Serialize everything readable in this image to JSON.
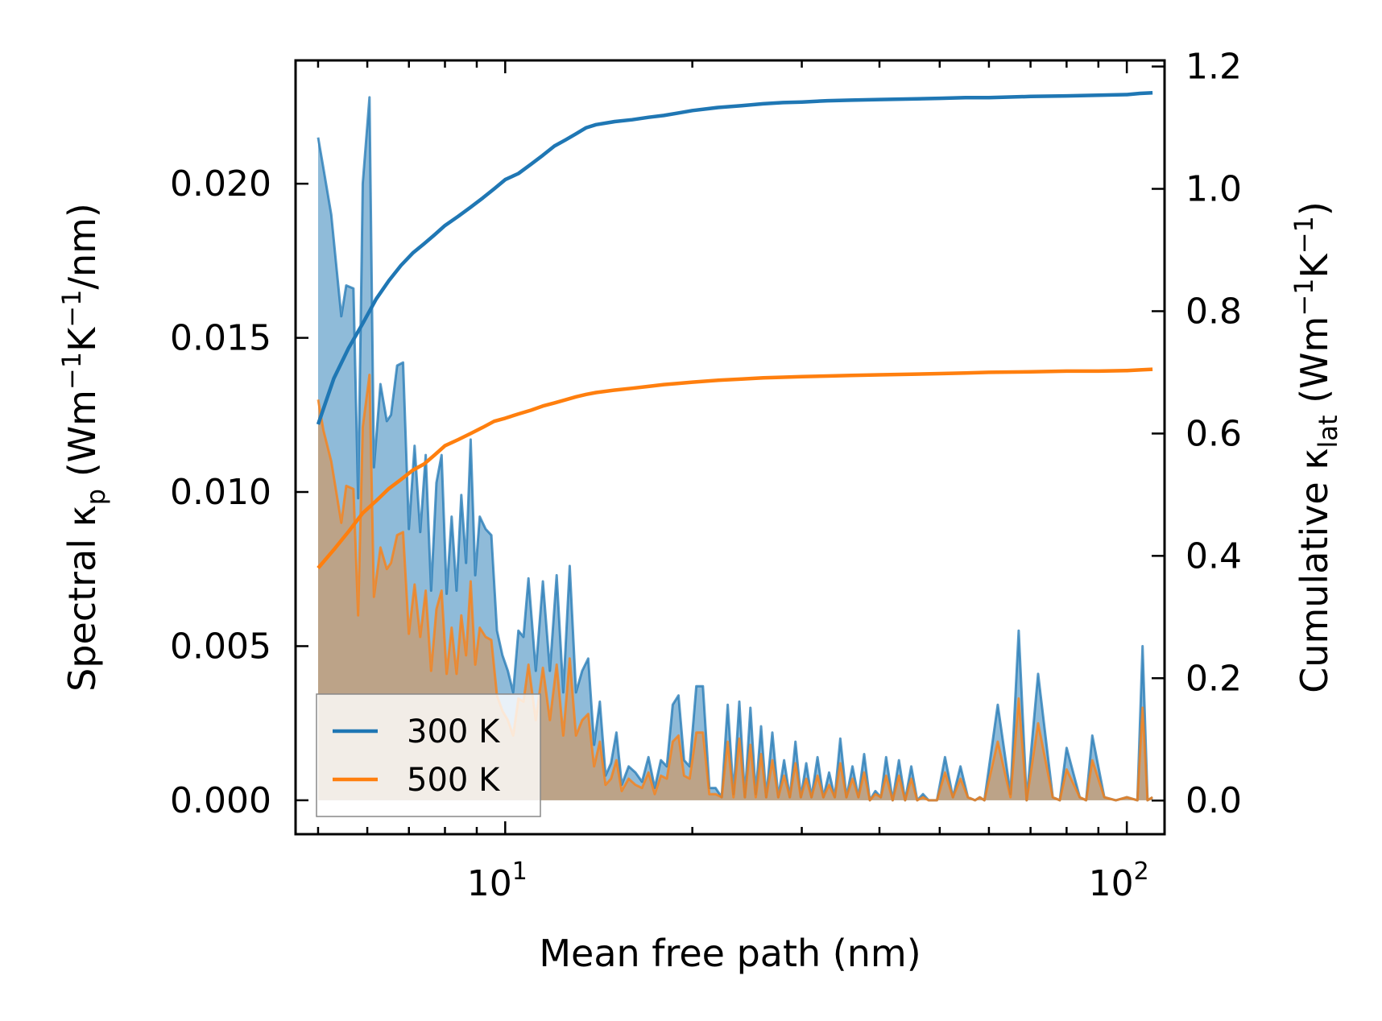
{
  "chart_data": {
    "type": "line",
    "title": "",
    "xlabel": "Mean free path (nm)",
    "xscale": "log",
    "xlim": [
      4.6,
      115
    ],
    "x_ticks": [
      {
        "value": 10,
        "base": "10",
        "exp": "1"
      },
      {
        "value": 100,
        "base": "10",
        "exp": "2"
      }
    ],
    "y_left": {
      "label_parts": {
        "pre": "Spectral κ",
        "sub": "p",
        "mid": " (Wm",
        "sup1": "−1",
        "mid2": "K",
        "sup2": "−1",
        "post": "/nm)"
      },
      "ylim": [
        -0.0011,
        0.024
      ],
      "ticks": [
        {
          "value": 0.0,
          "label": "0.000"
        },
        {
          "value": 0.005,
          "label": "0.005"
        },
        {
          "value": 0.01,
          "label": "0.010"
        },
        {
          "value": 0.015,
          "label": "0.015"
        },
        {
          "value": 0.02,
          "label": "0.020"
        }
      ]
    },
    "y_right": {
      "label_parts": {
        "pre": "Cumulative κ",
        "sub": "lat",
        "mid": " (Wm",
        "sup1": "−1",
        "mid2": "K",
        "sup2": "−1",
        "post": ")"
      },
      "ylim": [
        -0.055,
        1.21
      ],
      "ticks": [
        {
          "value": 0.0,
          "label": "0.0"
        },
        {
          "value": 0.2,
          "label": "0.2"
        },
        {
          "value": 0.4,
          "label": "0.4"
        },
        {
          "value": 0.6,
          "label": "0.6"
        },
        {
          "value": 0.8,
          "label": "0.8"
        },
        {
          "value": 1.0,
          "label": "1.0"
        },
        {
          "value": 1.2,
          "label": "1.2"
        }
      ]
    },
    "legend": {
      "position": "lower-left",
      "entries": [
        "300 K",
        "500 K"
      ]
    },
    "series": [
      {
        "name": "300 K",
        "color": "#1f77b4",
        "spectral": {
          "x": [
            5.0,
            5.1,
            5.25,
            5.45,
            5.55,
            5.7,
            5.8,
            5.9,
            6.05,
            6.15,
            6.3,
            6.45,
            6.55,
            6.7,
            6.85,
            7.0,
            7.15,
            7.3,
            7.45,
            7.6,
            7.75,
            7.9,
            8.05,
            8.2,
            8.35,
            8.5,
            8.65,
            8.8,
            8.95,
            9.1,
            9.3,
            9.5,
            9.7,
            9.9,
            10.1,
            10.3,
            10.5,
            10.7,
            10.9,
            11.2,
            11.5,
            11.8,
            12.1,
            12.4,
            12.7,
            13.0,
            13.3,
            13.6,
            13.9,
            14.2,
            14.5,
            14.8,
            15.1,
            15.4,
            15.8,
            16.2,
            16.6,
            17.0,
            17.4,
            17.8,
            18.2,
            18.6,
            19.0,
            19.4,
            19.8,
            20.3,
            20.8,
            21.3,
            21.8,
            22.3,
            22.8,
            23.3,
            23.8,
            24.3,
            24.8,
            25.3,
            25.8,
            26.3,
            26.9,
            27.5,
            28.1,
            28.7,
            29.3,
            29.9,
            30.5,
            31.1,
            31.8,
            32.5,
            33.2,
            33.9,
            34.6,
            35.4,
            36.2,
            37.0,
            37.8,
            38.6,
            39.4,
            40.2,
            41.0,
            42.0,
            43.0,
            44.0,
            45.0,
            46.0,
            47.0,
            48.0,
            49.5,
            51.0,
            52.5,
            54.0,
            55.5,
            57.0,
            58.0,
            59.0,
            62.0,
            65.0,
            67.0,
            69.0,
            72.0,
            76.0,
            78.0,
            80.0,
            84.0,
            86.0,
            88.0,
            92.0,
            96.0,
            100.0,
            104.0,
            106.0,
            108.0,
            110.0
          ],
          "y": [
            0.0215,
            0.0205,
            0.019,
            0.0157,
            0.0167,
            0.0166,
            0.0098,
            0.02,
            0.0228,
            0.0108,
            0.0135,
            0.0123,
            0.0125,
            0.0141,
            0.0142,
            0.0088,
            0.0115,
            0.0087,
            0.0112,
            0.0068,
            0.0103,
            0.0112,
            0.0067,
            0.0092,
            0.0068,
            0.0099,
            0.0077,
            0.0117,
            0.0073,
            0.0092,
            0.0088,
            0.0086,
            0.0055,
            0.0047,
            0.0042,
            0.0035,
            0.0055,
            0.0053,
            0.0072,
            0.0042,
            0.0071,
            0.0042,
            0.0073,
            0.0035,
            0.0076,
            0.0035,
            0.0042,
            0.0046,
            0.0018,
            0.0032,
            0.0008,
            0.0012,
            0.0022,
            0.0005,
            0.0011,
            0.0009,
            0.0006,
            0.0014,
            0.0004,
            0.0013,
            0.0011,
            0.0031,
            0.0034,
            0.0013,
            0.0011,
            0.0037,
            0.0037,
            0.0004,
            0.0004,
            0.0001,
            0.0031,
            0.0002,
            0.0032,
            0.0001,
            0.003,
            0.0002,
            0.0024,
            0.0001,
            0.0022,
            0.0001,
            0.0013,
            0.0001,
            0.0019,
            0.0001,
            0.0012,
            0.0001,
            0.0014,
            0.0001,
            0.0009,
            0.0001,
            0.002,
            0.0001,
            0.0011,
            0.0001,
            0.0015,
            0.0,
            0.0003,
            0.0001,
            0.0014,
            0.0,
            0.0013,
            0.0,
            0.0011,
            0.0,
            0.0002,
            0.0,
            0.0,
            0.0014,
            0.0001,
            0.0011,
            0.0001,
            0.0,
            0.0001,
            0.0,
            0.0031,
            0.0002,
            0.0055,
            0.0,
            0.0041,
            0.0001,
            0.0,
            0.0017,
            0.0001,
            0.0,
            0.0021,
            0.0001,
            0.0,
            0.0001,
            0.0,
            0.005,
            0.0,
            0.0001
          ]
        },
        "cumulative": {
          "x": [
            5.0,
            5.3,
            5.6,
            5.9,
            6.2,
            6.5,
            6.8,
            7.1,
            7.4,
            7.7,
            8.0,
            8.4,
            8.8,
            9.2,
            9.6,
            10.0,
            10.5,
            11.0,
            11.5,
            12.0,
            12.5,
            13.0,
            13.5,
            14.0,
            15.0,
            16.0,
            17.0,
            18.0,
            19.0,
            20.0,
            22.0,
            24.0,
            26.0,
            28.0,
            30.0,
            33.0,
            36.0,
            40.0,
            45.0,
            50.0,
            55.0,
            60.0,
            70.0,
            80.0,
            90.0,
            100.0,
            105.0,
            110.0
          ],
          "y": [
            0.615,
            0.69,
            0.74,
            0.78,
            0.82,
            0.85,
            0.875,
            0.895,
            0.91,
            0.925,
            0.94,
            0.955,
            0.97,
            0.985,
            1.0,
            1.015,
            1.025,
            1.04,
            1.055,
            1.07,
            1.08,
            1.09,
            1.1,
            1.105,
            1.11,
            1.113,
            1.117,
            1.12,
            1.124,
            1.128,
            1.133,
            1.136,
            1.139,
            1.141,
            1.142,
            1.144,
            1.145,
            1.146,
            1.147,
            1.148,
            1.149,
            1.149,
            1.151,
            1.152,
            1.153,
            1.154,
            1.156,
            1.157
          ]
        }
      },
      {
        "name": "500 K",
        "color": "#ff7f0e",
        "spectral": {
          "x": [
            5.0,
            5.1,
            5.25,
            5.45,
            5.55,
            5.7,
            5.8,
            5.9,
            6.05,
            6.15,
            6.3,
            6.45,
            6.55,
            6.7,
            6.85,
            7.0,
            7.15,
            7.3,
            7.45,
            7.6,
            7.75,
            7.9,
            8.05,
            8.2,
            8.35,
            8.5,
            8.65,
            8.8,
            8.95,
            9.1,
            9.3,
            9.5,
            9.7,
            9.9,
            10.1,
            10.3,
            10.5,
            10.7,
            10.9,
            11.2,
            11.5,
            11.8,
            12.1,
            12.4,
            12.7,
            13.0,
            13.3,
            13.6,
            13.9,
            14.2,
            14.5,
            14.8,
            15.1,
            15.4,
            15.8,
            16.2,
            16.6,
            17.0,
            17.4,
            17.8,
            18.2,
            18.6,
            19.0,
            19.4,
            19.8,
            20.3,
            20.8,
            21.3,
            21.8,
            22.3,
            22.8,
            23.3,
            23.8,
            24.3,
            24.8,
            25.3,
            25.8,
            26.3,
            26.9,
            27.5,
            28.1,
            28.7,
            29.3,
            29.9,
            30.5,
            31.1,
            31.8,
            32.5,
            33.2,
            33.9,
            34.6,
            35.4,
            36.2,
            37.0,
            37.8,
            38.6,
            39.4,
            40.2,
            41.0,
            42.0,
            43.0,
            44.0,
            45.0,
            46.0,
            47.0,
            48.0,
            49.5,
            51.0,
            52.5,
            54.0,
            55.5,
            57.0,
            58.0,
            59.0,
            62.0,
            65.0,
            67.0,
            69.0,
            72.0,
            76.0,
            78.0,
            80.0,
            84.0,
            86.0,
            88.0,
            92.0,
            96.0,
            100.0,
            104.0,
            106.0,
            108.0,
            110.0
          ],
          "y": [
            0.013,
            0.012,
            0.011,
            0.009,
            0.0102,
            0.0101,
            0.006,
            0.0121,
            0.0138,
            0.0066,
            0.0082,
            0.0075,
            0.0077,
            0.0086,
            0.0087,
            0.0054,
            0.007,
            0.0053,
            0.0068,
            0.0042,
            0.0062,
            0.0068,
            0.0041,
            0.0056,
            0.0041,
            0.006,
            0.0047,
            0.0071,
            0.0044,
            0.0056,
            0.0053,
            0.0052,
            0.0034,
            0.0029,
            0.0026,
            0.0021,
            0.0033,
            0.0032,
            0.0044,
            0.0026,
            0.0043,
            0.0026,
            0.0044,
            0.0021,
            0.0046,
            0.0021,
            0.0026,
            0.0028,
            0.0011,
            0.0019,
            0.0005,
            0.0007,
            0.0013,
            0.0003,
            0.0007,
            0.0005,
            0.0004,
            0.0009,
            0.0002,
            0.0008,
            0.0007,
            0.0019,
            0.0021,
            0.0008,
            0.0007,
            0.0022,
            0.0022,
            0.0002,
            0.0002,
            0.0001,
            0.0019,
            0.0001,
            0.002,
            0.0001,
            0.0018,
            0.0001,
            0.0015,
            0.0001,
            0.0013,
            0.0001,
            0.0008,
            0.0001,
            0.0012,
            0.0001,
            0.0007,
            0.0001,
            0.0008,
            0.0001,
            0.0005,
            0.0001,
            0.0012,
            0.0001,
            0.0007,
            0.0001,
            0.0009,
            0.0,
            0.0002,
            0.0001,
            0.0008,
            0.0,
            0.0008,
            0.0,
            0.0007,
            0.0,
            0.0001,
            0.0,
            0.0,
            0.0009,
            0.0001,
            0.0007,
            0.0001,
            0.0,
            0.0001,
            0.0,
            0.0019,
            0.0001,
            0.0033,
            0.0,
            0.0025,
            0.0001,
            0.0,
            0.001,
            0.0001,
            0.0,
            0.0013,
            0.0001,
            0.0,
            0.0001,
            0.0,
            0.003,
            0.0,
            0.0001
          ]
        },
        "cumulative": {
          "x": [
            5.0,
            5.3,
            5.6,
            5.9,
            6.2,
            6.5,
            6.8,
            7.1,
            7.4,
            7.7,
            8.0,
            8.4,
            8.8,
            9.2,
            9.6,
            10.0,
            10.5,
            11.0,
            11.5,
            12.0,
            12.5,
            13.0,
            13.5,
            14.0,
            15.0,
            16.0,
            17.0,
            18.0,
            19.0,
            20.0,
            22.0,
            24.0,
            26.0,
            28.0,
            30.0,
            33.0,
            36.0,
            40.0,
            45.0,
            50.0,
            55.0,
            60.0,
            70.0,
            80.0,
            90.0,
            100.0,
            105.0,
            110.0
          ],
          "y": [
            0.38,
            0.41,
            0.44,
            0.47,
            0.49,
            0.51,
            0.525,
            0.54,
            0.55,
            0.565,
            0.58,
            0.59,
            0.6,
            0.61,
            0.62,
            0.625,
            0.632,
            0.638,
            0.645,
            0.65,
            0.655,
            0.66,
            0.664,
            0.667,
            0.671,
            0.674,
            0.677,
            0.68,
            0.682,
            0.684,
            0.687,
            0.689,
            0.691,
            0.692,
            0.693,
            0.694,
            0.695,
            0.696,
            0.697,
            0.698,
            0.699,
            0.7,
            0.701,
            0.702,
            0.702,
            0.703,
            0.704,
            0.705
          ]
        }
      }
    ]
  }
}
